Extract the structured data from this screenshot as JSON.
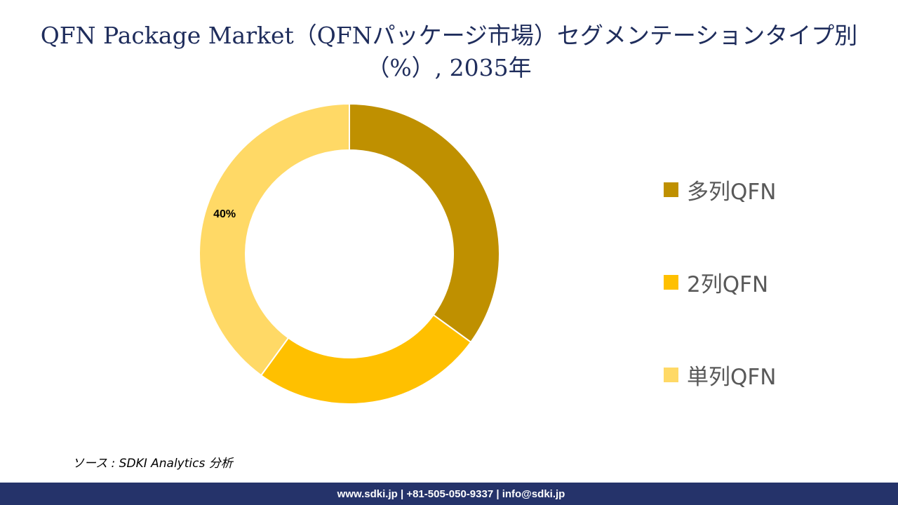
{
  "title": "QFN Package Market（QFNパッケージ市場）セグメンテーションタイプ別（%）, 2035年",
  "source": "ソース : SDKI Analytics 分析",
  "footer": "www.sdki.jp | +81-505-050-9337 | info@sdki.jp",
  "colors": {
    "title": "#1f2d5c",
    "footer_bg": "#25336a",
    "series": [
      "#bf9000",
      "#ffc000",
      "#ffd966"
    ]
  },
  "chart_data": {
    "type": "pie",
    "variant": "donut",
    "categories": [
      "多列QFN",
      "2列QFN",
      "単列QFN"
    ],
    "values": [
      35,
      25,
      40
    ],
    "data_labels": [
      "",
      "",
      "40%"
    ],
    "legend_position": "right"
  }
}
